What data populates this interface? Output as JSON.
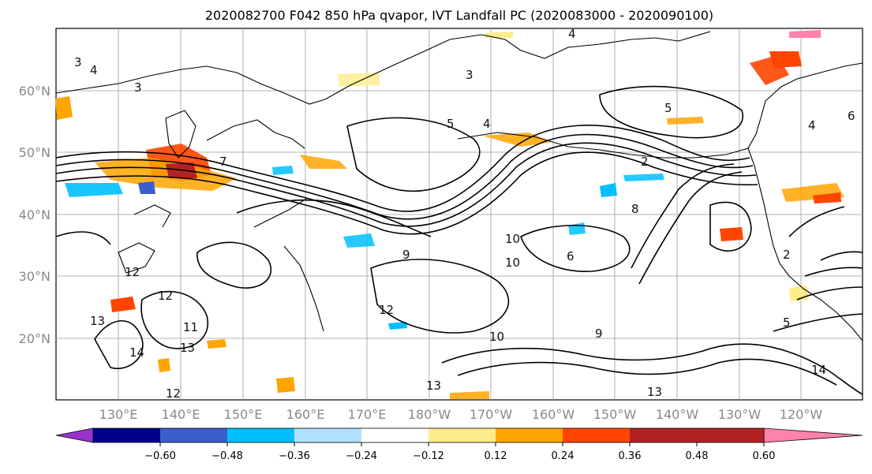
{
  "title": "2020082700 F042 850 hPa qvapor, IVT Landfall PC (2020083000 - 2020090100)",
  "map": {
    "lat_labels": [
      "60°N",
      "50°N",
      "40°N",
      "30°N",
      "20°N"
    ],
    "lon_labels": [
      "130°E",
      "140°E",
      "150°E",
      "160°E",
      "170°E",
      "180°W",
      "170°W",
      "160°W",
      "150°W",
      "140°W",
      "130°W",
      "120°W"
    ],
    "gridlines": true
  },
  "contour_labels": [
    "3",
    "4",
    "3",
    "5",
    "4",
    "7",
    "2",
    "5",
    "4",
    "6",
    "10",
    "10",
    "9",
    "12",
    "12",
    "11",
    "13",
    "14",
    "13",
    "12",
    "9",
    "8",
    "10",
    "13",
    "13",
    "6",
    "2",
    "14",
    "12",
    "3",
    "4",
    "5"
  ],
  "colorbar": {
    "colors": [
      "#9932cc",
      "#00008b",
      "#3a5fcd",
      "#00bfff",
      "#b0e2ff",
      "#ffffff",
      "#ffec8b",
      "#ffa500",
      "#ff4500",
      "#b22222",
      "#ff82ab"
    ],
    "tick_labels": [
      "−0.60",
      "−0.48",
      "−0.36",
      "−0.24",
      "−0.12",
      "0.12",
      "0.24",
      "0.36",
      "0.48",
      "0.60"
    ]
  }
}
